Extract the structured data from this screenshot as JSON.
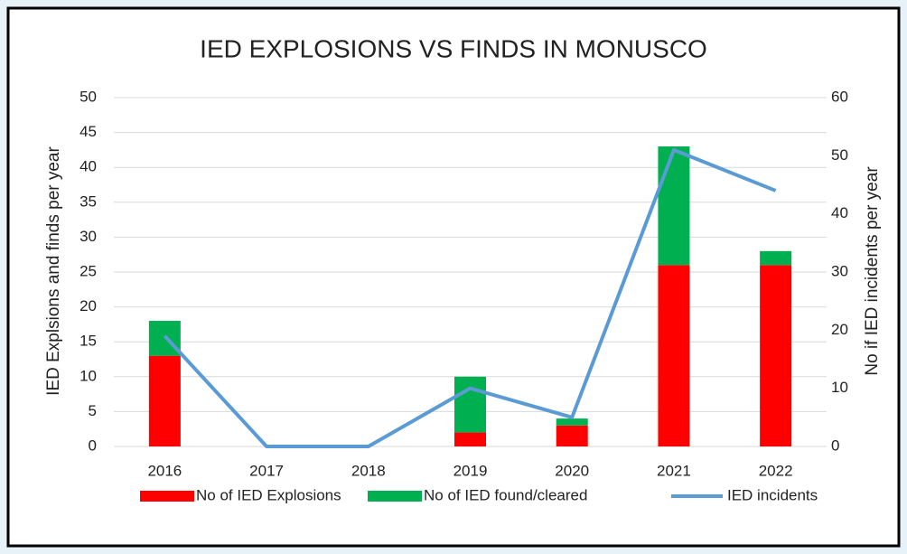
{
  "chart_data": {
    "type": "bar",
    "stacked": true,
    "title": "IED EXPLOSIONS VS FINDS IN MONUSCO",
    "ylabel": "IED Explsions and finds per year",
    "y2label": "No if IED incidents per year",
    "categories": [
      "2016",
      "2017",
      "2018",
      "2019",
      "2020",
      "2021",
      "2022"
    ],
    "series": [
      {
        "name": "No of IED Explosions",
        "color": "#ff0000",
        "type": "bar",
        "values": [
          13,
          0,
          0,
          2,
          3,
          26,
          26
        ]
      },
      {
        "name": "No of IED found/cleared",
        "color": "#00b050",
        "type": "bar",
        "values": [
          5,
          0,
          0,
          8,
          1,
          17,
          2
        ]
      },
      {
        "name": "IED incidents",
        "color": "#5b9bd5",
        "type": "line",
        "axis": "y2",
        "values": [
          19,
          0,
          0,
          10,
          5,
          51,
          44
        ]
      }
    ],
    "ylim": [
      0,
      50
    ],
    "yticks": [
      0,
      5,
      10,
      15,
      20,
      25,
      30,
      35,
      40,
      45,
      50
    ],
    "y2lim": [
      0,
      60
    ],
    "y2ticks": [
      0,
      10,
      20,
      30,
      40,
      50,
      60
    ],
    "grid": true,
    "legend": "bottom"
  }
}
